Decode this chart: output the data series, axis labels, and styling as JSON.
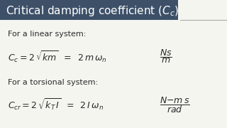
{
  "title": "Critical damping coefficient ($C_c$)",
  "title_bg_color": "#3d5068",
  "title_text_color": "#ffffff",
  "bg_color": "#f5f5f0",
  "text_color": "#2a2a2a",
  "label_linear": "For a linear system:",
  "eq_linear_1": "$C_c = 2\\,\\sqrt{km}\\;\\; = \\;\\; 2\\,m\\,\\omega_n$",
  "eq_linear_units": "$\\dfrac{Ns}{m}$",
  "label_torsional": "For a torsional system:",
  "eq_torsional_1": "$C_{cr} = 2\\,\\sqrt{k_T\\,I}\\;\\; = \\;\\; 2\\,I\\,\\omega_n$",
  "eq_torsional_units": "$\\dfrac{N{-}m\\,s}{rad}$",
  "font_size_title": 11,
  "font_size_label": 8,
  "font_size_eq": 9,
  "font_size_units": 9
}
